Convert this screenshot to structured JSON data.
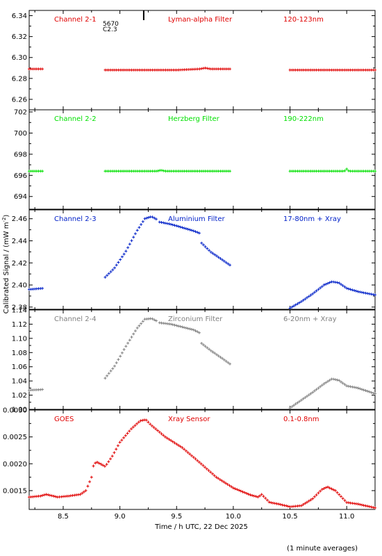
{
  "footer_note": "(1 minute averages)",
  "chart_data": {
    "type": "scatter",
    "shared_xlabel": "Time / h UTC, 22 Dec 2025",
    "shared_ylabel": "Calibrated Signal / (mW m",
    "ylabel_superscript": "-2",
    "ylabel_close": ")",
    "xlim": [
      8.2,
      11.25
    ],
    "xticks": [
      8.5,
      9.0,
      9.5,
      10.0,
      10.5,
      11.0
    ],
    "xtick_labels": [
      "8.5",
      "9.0",
      "9.5",
      "10.0",
      "10.5",
      "11.0"
    ],
    "marker": {
      "top_label_1": "5670",
      "top_label_2": "C2.3",
      "x": 9.21
    },
    "panels": [
      {
        "channel": "Channel 2-1",
        "filter": "Lyman-alpha Filter",
        "band": "120-123nm",
        "color": "#e00000",
        "ylim": [
          6.25,
          6.345
        ],
        "yticks": [
          6.26,
          6.28,
          6.3,
          6.32,
          6.34
        ],
        "ytick_labels": [
          "6.26",
          "6.28",
          "6.30",
          "6.32",
          "6.34"
        ],
        "segments": [
          {
            "x": [
              8.2,
              8.32
            ],
            "y": [
              6.289,
              6.289
            ]
          },
          {
            "x": [
              8.87,
              9.5,
              9.7,
              9.75,
              9.8,
              9.97
            ],
            "y": [
              6.288,
              6.288,
              6.289,
              6.29,
              6.289,
              6.289
            ]
          },
          {
            "x": [
              10.5,
              11.25
            ],
            "y": [
              6.288,
              6.288
            ]
          }
        ]
      },
      {
        "channel": "Channel 2-2",
        "filter": "Herzberg Filter",
        "band": "190-222nm",
        "color": "#00e000",
        "ylim": [
          692.8,
          702.2
        ],
        "yticks": [
          694,
          696,
          698,
          700,
          702
        ],
        "ytick_labels": [
          "694",
          "696",
          "698",
          "700",
          "702"
        ],
        "segments": [
          {
            "x": [
              8.2,
              8.32
            ],
            "y": [
              696.4,
              696.4
            ]
          },
          {
            "x": [
              8.87,
              9.33,
              9.36,
              9.4,
              9.97
            ],
            "y": [
              696.4,
              696.4,
              696.5,
              696.4,
              696.4
            ]
          },
          {
            "x": [
              10.5,
              10.98,
              11.0,
              11.02,
              11.25
            ],
            "y": [
              696.4,
              696.4,
              696.6,
              696.4,
              696.4
            ]
          }
        ]
      },
      {
        "channel": "Channel 2-3",
        "filter": "Aluminium Filter",
        "band": "17-80nm + Xray",
        "color": "#0020c8",
        "ylim": [
          2.378,
          2.468
        ],
        "yticks": [
          2.38,
          2.4,
          2.42,
          2.44,
          2.46
        ],
        "ytick_labels": [
          "2.38",
          "2.40",
          "2.42",
          "2.44",
          "2.46"
        ],
        "segments": [
          {
            "x": [
              8.2,
              8.32
            ],
            "y": [
              2.396,
              2.397
            ]
          },
          {
            "x": [
              8.87,
              8.95,
              9.05,
              9.15,
              9.22,
              9.28,
              9.33
            ],
            "y": [
              2.407,
              2.415,
              2.43,
              2.449,
              2.46,
              2.462,
              2.459
            ]
          },
          {
            "x": [
              9.35,
              9.45,
              9.55,
              9.65,
              9.7
            ],
            "y": [
              2.457,
              2.455,
              2.452,
              2.449,
              2.447
            ]
          },
          {
            "x": [
              9.72,
              9.8,
              9.9,
              9.97
            ],
            "y": [
              2.438,
              2.43,
              2.423,
              2.418
            ]
          },
          {
            "x": [
              10.5,
              10.6,
              10.7,
              10.8,
              10.87,
              10.93,
              11.0,
              11.1,
              11.25
            ],
            "y": [
              2.379,
              2.385,
              2.392,
              2.4,
              2.403,
              2.402,
              2.397,
              2.394,
              2.391
            ]
          }
        ]
      },
      {
        "channel": "Channel 2-4",
        "filter": "Zirconium Filter",
        "band": "6-20nm + Xray",
        "color": "#808080",
        "ylim": [
          1.0,
          1.14
        ],
        "yticks": [
          1.0,
          1.02,
          1.04,
          1.06,
          1.08,
          1.1,
          1.12,
          1.14
        ],
        "ytick_labels": [
          "1.00",
          "1.02",
          "1.04",
          "1.06",
          "1.08",
          "1.10",
          "1.12",
          "1.14"
        ],
        "segments": [
          {
            "x": [
              8.2,
              8.32
            ],
            "y": [
              1.027,
              1.028
            ]
          },
          {
            "x": [
              8.87,
              8.95,
              9.05,
              9.15,
              9.22,
              9.28,
              9.33
            ],
            "y": [
              1.044,
              1.06,
              1.088,
              1.114,
              1.127,
              1.128,
              1.124
            ]
          },
          {
            "x": [
              9.35,
              9.45,
              9.55,
              9.65,
              9.7
            ],
            "y": [
              1.122,
              1.12,
              1.116,
              1.112,
              1.108
            ]
          },
          {
            "x": [
              9.72,
              9.8,
              9.9,
              9.97
            ],
            "y": [
              1.093,
              1.083,
              1.072,
              1.064
            ]
          },
          {
            "x": [
              10.5,
              10.6,
              10.7,
              10.8,
              10.87,
              10.93,
              11.0,
              11.1,
              11.25
            ],
            "y": [
              1.002,
              1.013,
              1.024,
              1.036,
              1.043,
              1.041,
              1.033,
              1.03,
              1.022
            ]
          }
        ]
      },
      {
        "channel": "GOES",
        "filter": "Xray Sensor",
        "band": "0.1-0.8nm",
        "color": "#e00000",
        "ylim": [
          0.00115,
          0.003
        ],
        "yticks": [
          0.0015,
          0.002,
          0.0025,
          0.003
        ],
        "ytick_labels": [
          "0.0015",
          "0.0020",
          "0.0025",
          "0.0030"
        ],
        "segments": [
          {
            "x": [
              8.2,
              8.3,
              8.35,
              8.45,
              8.55,
              8.65,
              8.7,
              8.73,
              8.75,
              8.77,
              8.8,
              8.87,
              8.93,
              9.0,
              9.1,
              9.18,
              9.23,
              9.27,
              9.4,
              9.55,
              9.7,
              9.85,
              10.0,
              10.15,
              10.22,
              10.25,
              10.32,
              10.4,
              10.5,
              10.6,
              10.7,
              10.78,
              10.83,
              10.9,
              11.0,
              11.1,
              11.25
            ],
            "y": [
              0.00138,
              0.0014,
              0.00143,
              0.00138,
              0.0014,
              0.00143,
              0.0015,
              0.00165,
              0.00175,
              0.002,
              0.00203,
              0.00195,
              0.00213,
              0.0024,
              0.00265,
              0.0028,
              0.00282,
              0.00273,
              0.0025,
              0.0023,
              0.00203,
              0.00175,
              0.00155,
              0.00142,
              0.00138,
              0.00143,
              0.00128,
              0.00125,
              0.0012,
              0.00122,
              0.00135,
              0.00152,
              0.00157,
              0.0015,
              0.00128,
              0.00125,
              0.00118
            ]
          }
        ]
      }
    ]
  }
}
